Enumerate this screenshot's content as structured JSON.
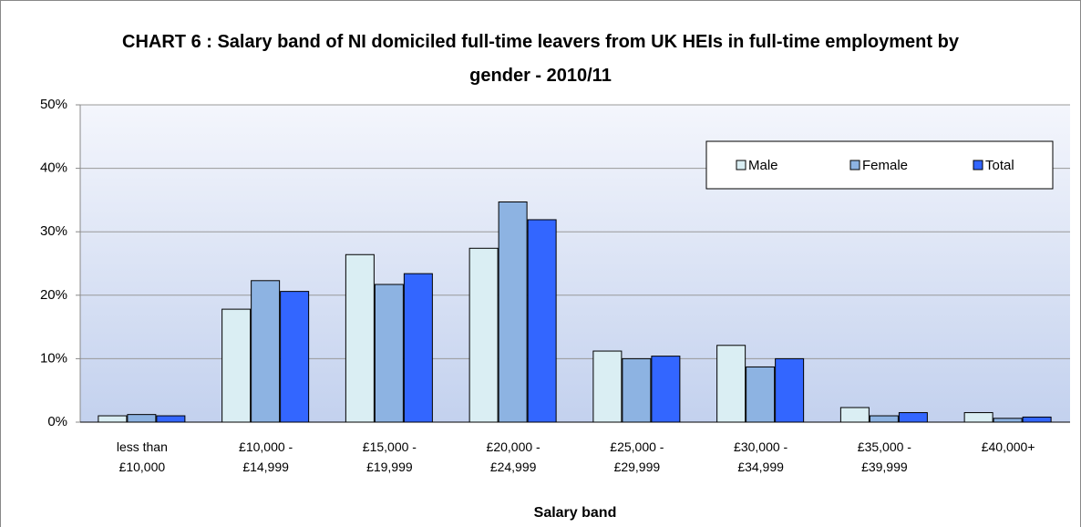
{
  "chart_data": {
    "type": "bar",
    "title": "CHART 6 : Salary band of NI domiciled full-time leavers from UK HEIs in full-time employment by gender - 2010/11",
    "x_label": "Salary band",
    "categories": [
      "less than £10,000",
      "£10,000 - £14,999",
      "£15,000 - £19,999",
      "£20,000 - £24,999",
      "£25,000 - £29,999",
      "£30,000 - £34,999",
      "£35,000 - £39,999",
      "£40,000+"
    ],
    "series": [
      {
        "name": "Male",
        "color": "#daeef3",
        "values": [
          1.0,
          17.8,
          26.4,
          27.4,
          11.2,
          12.1,
          2.3,
          1.5
        ]
      },
      {
        "name": "Female",
        "color": "#8db3e2",
        "values": [
          1.2,
          22.3,
          21.7,
          34.7,
          10.0,
          8.7,
          1.0,
          0.6
        ]
      },
      {
        "name": "Total",
        "color": "#3366ff",
        "values": [
          1.0,
          20.6,
          23.4,
          31.9,
          10.4,
          10.0,
          1.5,
          0.8
        ]
      }
    ],
    "ylim": [
      0,
      50
    ],
    "yticks": [
      {
        "value": 0,
        "label": "0%"
      },
      {
        "value": 10,
        "label": "10%"
      },
      {
        "value": 20,
        "label": "20%"
      },
      {
        "value": 30,
        "label": "30%"
      },
      {
        "value": 40,
        "label": "40%"
      },
      {
        "value": 50,
        "label": "50%"
      }
    ],
    "grid": true,
    "legend": "top-right"
  }
}
